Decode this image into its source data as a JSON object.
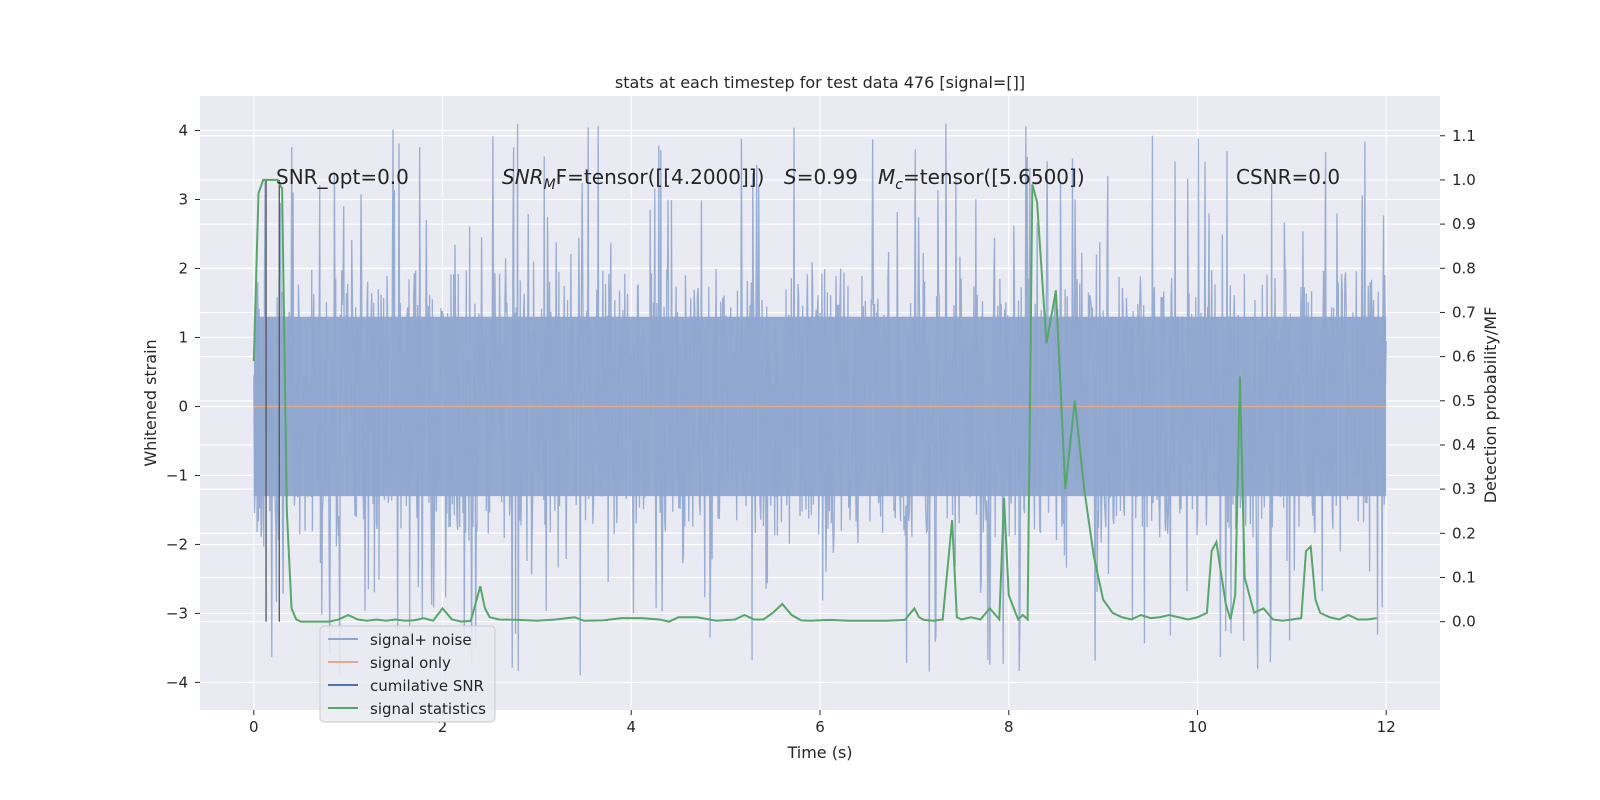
{
  "chart_data": {
    "type": "line",
    "title": "stats at each timestep for test data 476 [signal=[]]",
    "xlabel": "Time (s)",
    "ylabel": "Whitened strain",
    "ylabel_right": "Detection probability/MF",
    "xlim": [
      -0.57,
      12.57
    ],
    "ylim": [
      -4.4,
      4.5
    ],
    "ylim_right": [
      -0.2,
      1.19
    ],
    "xticks": [
      0,
      2,
      4,
      6,
      8,
      10,
      12
    ],
    "yticks": [
      -4,
      -3,
      -2,
      -1,
      0,
      1,
      2,
      3,
      4
    ],
    "yticks_right": [
      0.0,
      0.1,
      0.2,
      0.3,
      0.4,
      0.5,
      0.6,
      0.7,
      0.8,
      0.9,
      1.0,
      1.1
    ],
    "grid": true,
    "legend_position": "lower-left",
    "annotations": {
      "snr_opt": "SNR_opt=0.0",
      "snr_mf_prefix": "SNR",
      "snr_mf_sub": "M",
      "snr_mf_suffix": "F=tensor([[4.2000]])",
      "s_label": "S",
      "s_value": "=0.99",
      "mc_label": "M",
      "mc_sub": "c",
      "mc_value": "=tensor([5.6500])",
      "csnr": "CSNR=0.0"
    },
    "series": [
      {
        "name": "signal+ noise",
        "color": "#8fa6cf",
        "kind": "noise",
        "x_range": [
          0,
          12
        ],
        "typical_band": [
          -1.9,
          2.0
        ],
        "extremes": [
          -3.9,
          4.1
        ]
      },
      {
        "name": "signal only",
        "color": "#dd8452",
        "x": [
          0,
          12
        ],
        "y": [
          0,
          0
        ]
      },
      {
        "name": "cumilative SNR",
        "color": "#4c72b0",
        "x": [],
        "y": []
      },
      {
        "name": "signal statistics",
        "color": "#55a868",
        "axis": "right",
        "x": [
          0,
          0.05,
          0.1,
          0.15,
          0.2,
          0.25,
          0.3,
          0.35,
          0.4,
          0.45,
          0.5,
          0.6,
          0.7,
          0.8,
          0.9,
          1.0,
          1.1,
          1.2,
          1.3,
          1.4,
          1.5,
          1.6,
          1.7,
          1.8,
          1.9,
          2.0,
          2.1,
          2.2,
          2.3,
          2.4,
          2.45,
          2.5,
          2.6,
          2.8,
          3.0,
          3.2,
          3.4,
          3.5,
          3.7,
          3.9,
          4.1,
          4.3,
          4.4,
          4.5,
          4.7,
          4.9,
          5.1,
          5.2,
          5.3,
          5.4,
          5.5,
          5.6,
          5.7,
          5.8,
          5.9,
          6.1,
          6.3,
          6.5,
          6.7,
          6.9,
          7.0,
          7.05,
          7.1,
          7.2,
          7.3,
          7.4,
          7.45,
          7.5,
          7.6,
          7.7,
          7.8,
          7.9,
          7.95,
          8.0,
          8.1,
          8.15,
          8.2,
          8.25,
          8.3,
          8.4,
          8.5,
          8.6,
          8.7,
          8.8,
          8.9,
          9.0,
          9.1,
          9.2,
          9.3,
          9.4,
          9.5,
          9.6,
          9.7,
          9.8,
          9.9,
          10.0,
          10.1,
          10.15,
          10.2,
          10.3,
          10.35,
          10.4,
          10.45,
          10.5,
          10.6,
          10.7,
          10.8,
          10.9,
          11.0,
          11.1,
          11.15,
          11.2,
          11.25,
          11.3,
          11.4,
          11.5,
          11.6,
          11.7,
          11.8,
          11.9
        ],
        "y": [
          0.59,
          0.97,
          1.0,
          1.0,
          1.0,
          1.0,
          0.98,
          0.25,
          0.03,
          0.005,
          0.0,
          0.0,
          0.0,
          0.0,
          0.005,
          0.015,
          0.005,
          0.002,
          0.005,
          0.002,
          0.005,
          0.002,
          0.003,
          0.008,
          0.002,
          0.03,
          0.005,
          0.0,
          0.002,
          0.08,
          0.03,
          0.01,
          0.005,
          0.004,
          0.002,
          0.005,
          0.01,
          0.002,
          0.003,
          0.008,
          0.008,
          0.005,
          0.0,
          0.01,
          0.01,
          0.002,
          0.005,
          0.015,
          0.005,
          0.005,
          0.02,
          0.04,
          0.015,
          0.003,
          0.002,
          0.004,
          0.002,
          0.002,
          0.002,
          0.004,
          0.03,
          0.01,
          0.004,
          0.002,
          0.005,
          0.23,
          0.01,
          0.005,
          0.01,
          0.005,
          0.03,
          0.005,
          0.28,
          0.06,
          0.005,
          0.015,
          0.005,
          0.99,
          0.95,
          0.63,
          0.75,
          0.3,
          0.5,
          0.3,
          0.15,
          0.05,
          0.02,
          0.01,
          0.005,
          0.015,
          0.008,
          0.01,
          0.015,
          0.01,
          0.005,
          0.01,
          0.02,
          0.16,
          0.18,
          0.04,
          0.005,
          0.06,
          0.555,
          0.1,
          0.02,
          0.03,
          0.005,
          0.002,
          0.005,
          0.008,
          0.16,
          0.17,
          0.05,
          0.02,
          0.01,
          0.005,
          0.015,
          0.005,
          0.005,
          0.008
        ]
      }
    ]
  }
}
